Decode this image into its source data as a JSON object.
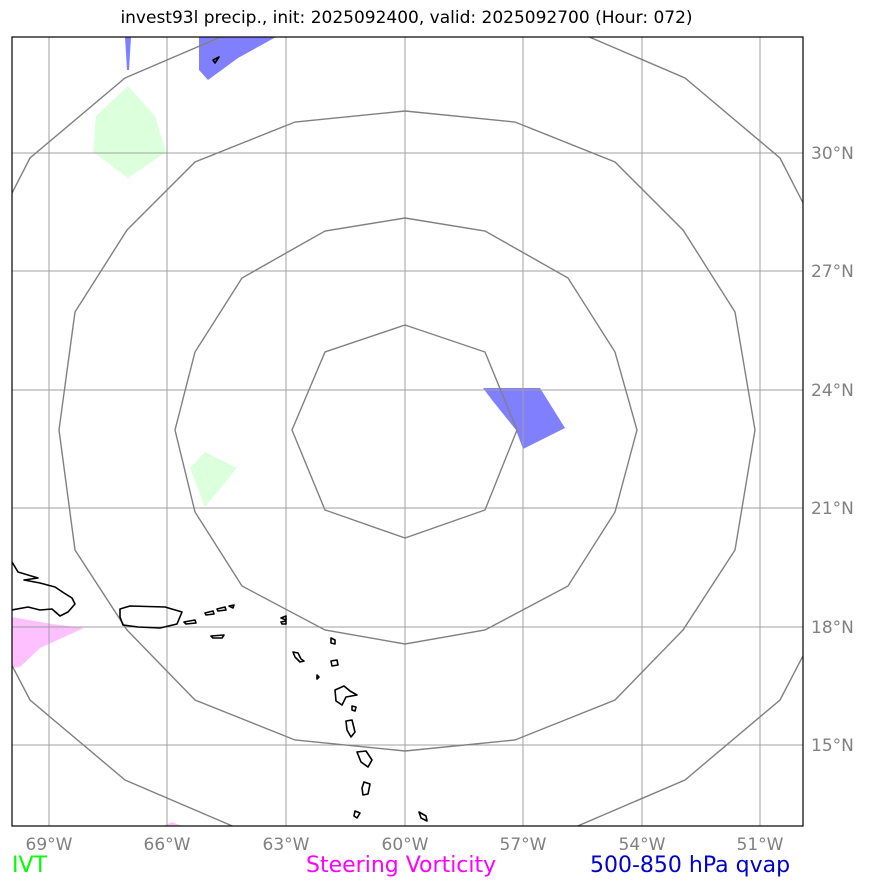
{
  "title": "invest93l precip., init: 2025092400, valid: 2025092700 (Hour: 072)",
  "longitude_labels": [
    "69°W",
    "66°W",
    "63°W",
    "60°W",
    "57°W",
    "54°W",
    "51°W"
  ],
  "latitude_labels": [
    "30°N",
    "27°N",
    "24°N",
    "21°N",
    "18°N",
    "15°N"
  ],
  "legend": {
    "ivt": "IVT",
    "steering_vorticity": "Steering Vorticity",
    "qvap": "500-850 hPa qvap"
  },
  "colors": {
    "ivt": "#00ff00",
    "steering_vorticity": "#ff00ff",
    "qvap": "#0000cc",
    "grid": "#a0a0a0",
    "range_rings": "#808080",
    "coastline": "#000000"
  }
}
